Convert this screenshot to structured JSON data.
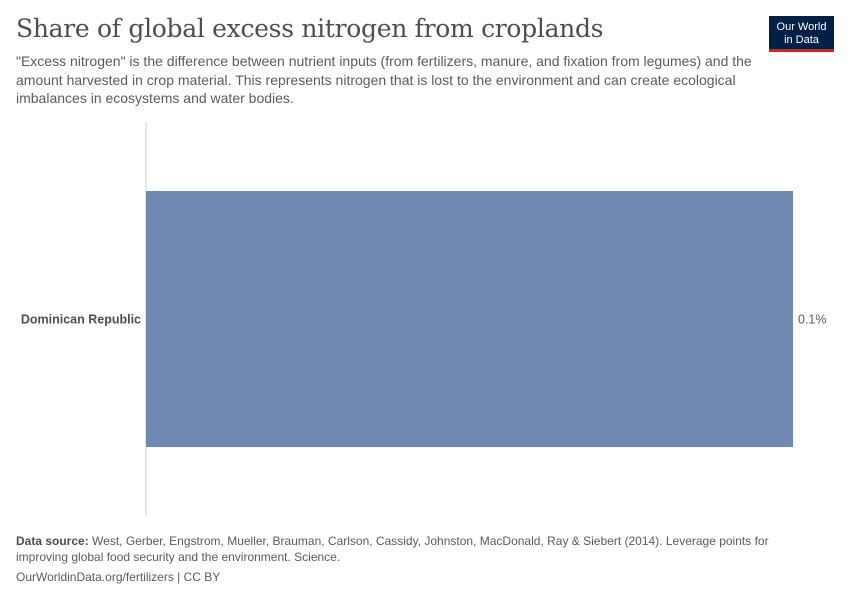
{
  "header": {
    "title": "Share of global excess nitrogen from croplands",
    "subtitle": "\"Excess nitrogen\" is the difference between nutrient inputs (from fertilizers, manure, and fixation from legumes) and the amount harvested in crop material. This represents nitrogen that is lost to the environment and can create ecological imbalances in ecosystems and water bodies."
  },
  "logo": {
    "line1": "Our World",
    "line2": "in Data"
  },
  "chart_data": {
    "type": "bar",
    "orientation": "horizontal",
    "categories": [
      "Dominican Republic"
    ],
    "values": [
      0.1
    ],
    "value_labels": [
      "0.1%"
    ],
    "unit": "%",
    "xlim": [
      0,
      0.1
    ],
    "bar_color": "#6f89b2",
    "grid": false
  },
  "footer": {
    "source_label": "Data source:",
    "source_text": " West, Gerber, Engstrom, Mueller, Brauman, Carlson, Cassidy, Johnston, MacDonald, Ray & Siebert (2014). Leverage points for improving global food security and the environment. Science.",
    "url": "OurWorldinData.org/fertilizers | CC BY"
  }
}
